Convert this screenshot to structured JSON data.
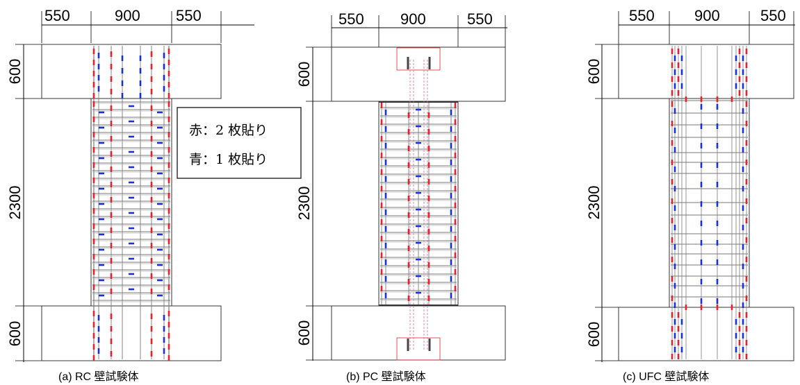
{
  "panels": [
    {
      "key": "a",
      "caption": "(a)  RC 壁試験体",
      "dims": {
        "left": "550",
        "center": "900",
        "right": "550",
        "top": "600",
        "mid": "2300",
        "bottom": "600"
      }
    },
    {
      "key": "b",
      "caption": "(b)  PC 壁試験体",
      "dims": {
        "left": "550",
        "center": "900",
        "right": "550",
        "top": "600",
        "mid": "2300",
        "bottom": "600"
      }
    },
    {
      "key": "c",
      "caption": "(c)  UFC 壁試験体",
      "dims": {
        "left": "550",
        "center": "900",
        "right": "550",
        "top": "600",
        "mid": "2300",
        "bottom": "600"
      }
    }
  ],
  "legend": {
    "line1": "赤：2 枚貼り",
    "line2": "青：1 枚貼り"
  },
  "colors": {
    "red_gauge": "#e8202a",
    "blue_gauge": "#1a2fd6",
    "rebar": "#7a7a7a",
    "outline": "#333333",
    "pink": "#e06a9a"
  }
}
